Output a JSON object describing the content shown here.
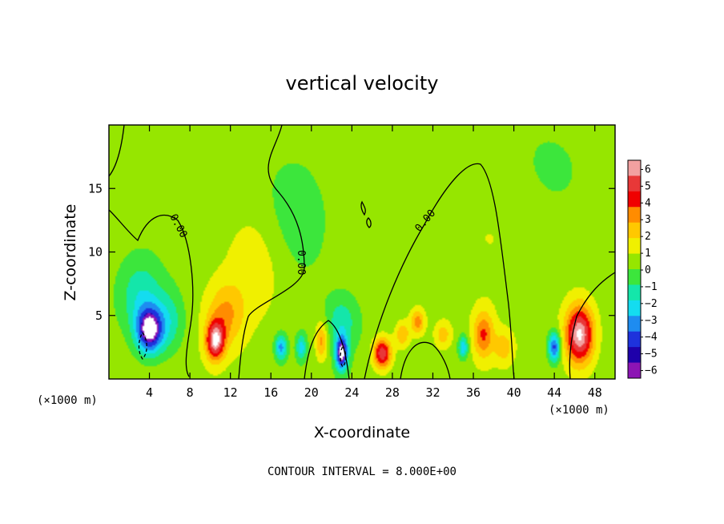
{
  "chart_data": {
    "type": "heatmap",
    "title": "vertical velocity",
    "xlabel": "X-coordinate",
    "ylabel": "Z-coordinate",
    "x_unit_label": "(×1000 m)",
    "x_unit_label_right": "(×1000 m)",
    "xlim": [
      0,
      50
    ],
    "ylim": [
      0,
      20
    ],
    "x_ticks": [
      4,
      8,
      12,
      16,
      20,
      24,
      28,
      32,
      36,
      40,
      44,
      48
    ],
    "x_tick_labels": [
      "4",
      "8",
      "12",
      "16",
      "20",
      "24",
      "28",
      "32",
      "36",
      "40",
      "44",
      "48"
    ],
    "y_ticks": [
      5,
      10,
      15
    ],
    "y_tick_labels": [
      "5",
      "10",
      "15"
    ],
    "grid": false,
    "colorbar": {
      "position": "right",
      "levels": [
        6,
        5,
        4,
        3,
        2,
        1,
        0,
        -1,
        -2,
        -3,
        -4,
        -5,
        -6
      ],
      "labels": [
        "6",
        "5",
        "4",
        "3",
        "2",
        "1",
        "0",
        "−1",
        "−2",
        "−3",
        "−4",
        "−5",
        "−6"
      ],
      "colors": [
        "#f2a0a0",
        "#e83838",
        "#f00000",
        "#ff8c00",
        "#ffc800",
        "#f0f000",
        "#96e600",
        "#3ce63c",
        "#14e6aa",
        "#14dcf0",
        "#1e8cf0",
        "#1e32dc",
        "#1e00aa",
        "#8c14b4"
      ]
    },
    "contour_labels": [
      "0.00",
      "0.00",
      "0.00"
    ],
    "contour_interval_text": "CONTOUR INTERVAL = 8.000E+00",
    "features": [
      {
        "x": 4.0,
        "z": 3.8,
        "value": -6.5,
        "sx": 1.3,
        "sz": 1.8
      },
      {
        "x": 3.2,
        "z": 6.5,
        "value": -2.4,
        "sx": 2.2,
        "sz": 3.0
      },
      {
        "x": 6.0,
        "z": 4.5,
        "value": -2.0,
        "sx": 1.5,
        "sz": 2.5
      },
      {
        "x": 10.5,
        "z": 3.0,
        "value": 5.8,
        "sx": 0.9,
        "sz": 1.5
      },
      {
        "x": 11.5,
        "z": 5.0,
        "value": 2.5,
        "sx": 1.8,
        "sz": 2.5
      },
      {
        "x": 14.5,
        "z": 9.0,
        "value": 1.2,
        "sx": 3.0,
        "sz": 4.5
      },
      {
        "x": 18.5,
        "z": 13.0,
        "value": -1.2,
        "sx": 3.5,
        "sz": 5.0
      },
      {
        "x": 17.0,
        "z": 2.5,
        "value": -3.8,
        "sx": 0.6,
        "sz": 1.0
      },
      {
        "x": 19.0,
        "z": 2.5,
        "value": -3.0,
        "sx": 0.5,
        "sz": 1.0
      },
      {
        "x": 21.0,
        "z": 3.0,
        "value": 3.0,
        "sx": 0.6,
        "sz": 1.5
      },
      {
        "x": 23.0,
        "z": 2.0,
        "value": -6.5,
        "sx": 0.6,
        "sz": 1.3
      },
      {
        "x": 23.0,
        "z": 4.5,
        "value": -2.0,
        "sx": 1.5,
        "sz": 2.0
      },
      {
        "x": 27.0,
        "z": 2.0,
        "value": 5.5,
        "sx": 0.9,
        "sz": 1.2
      },
      {
        "x": 29.0,
        "z": 3.5,
        "value": 2.5,
        "sx": 0.7,
        "sz": 1.0
      },
      {
        "x": 30.5,
        "z": 4.5,
        "value": 3.0,
        "sx": 0.7,
        "sz": 1.0
      },
      {
        "x": 33.0,
        "z": 3.5,
        "value": 2.0,
        "sx": 0.8,
        "sz": 1.0
      },
      {
        "x": 35.0,
        "z": 2.5,
        "value": -3.5,
        "sx": 0.5,
        "sz": 0.9
      },
      {
        "x": 37.0,
        "z": 3.5,
        "value": 3.5,
        "sx": 1.0,
        "sz": 1.8
      },
      {
        "x": 39.0,
        "z": 2.5,
        "value": 2.0,
        "sx": 0.9,
        "sz": 1.2
      },
      {
        "x": 44.0,
        "z": 2.5,
        "value": -5.0,
        "sx": 0.6,
        "sz": 1.2
      },
      {
        "x": 46.5,
        "z": 3.5,
        "value": 6.5,
        "sx": 1.4,
        "sz": 2.3
      },
      {
        "x": 38.0,
        "z": 12.0,
        "value": 0.6,
        "sx": 6.0,
        "sz": 5.0
      },
      {
        "x": 44.0,
        "z": 16.0,
        "value": -0.6,
        "sx": 4.0,
        "sz": 4.0
      }
    ]
  }
}
